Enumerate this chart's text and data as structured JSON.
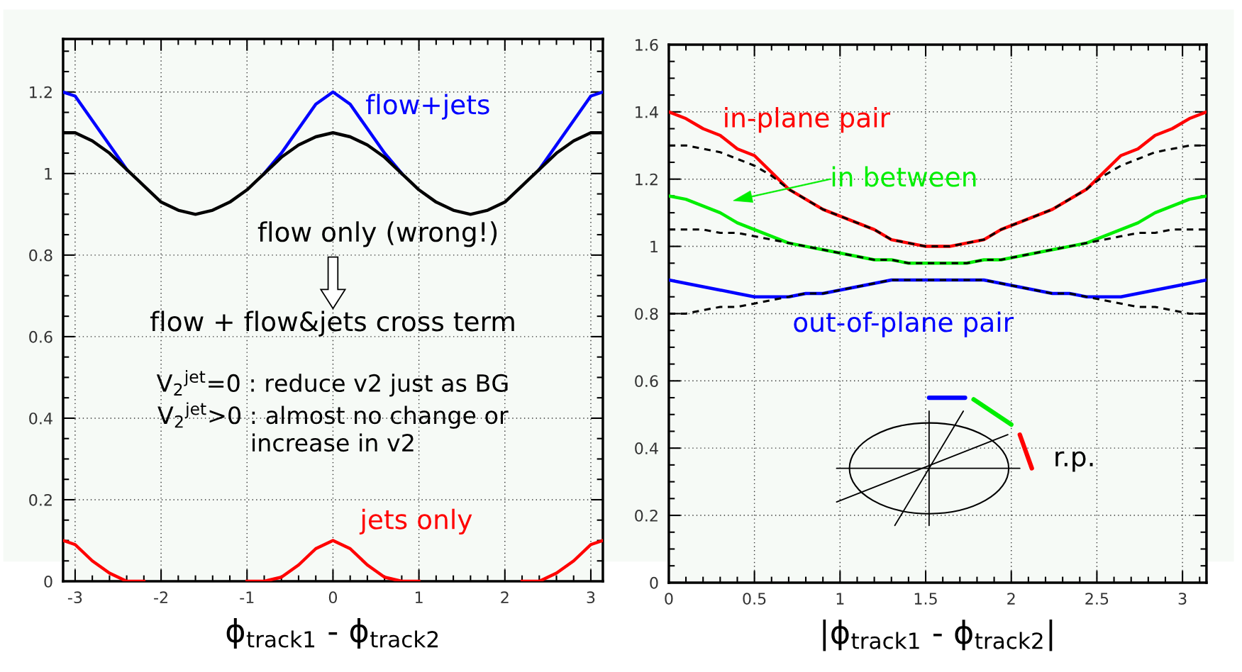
{
  "chart_data": [
    {
      "type": "line",
      "xlabel": "ϕ$_{track1}$ - ϕ$_{track2}$",
      "xlim": [
        -3.14,
        3.14
      ],
      "xticks": [
        -3,
        -2,
        -1,
        0,
        1,
        2,
        3
      ],
      "ylim": [
        0,
        1.33
      ],
      "yticks": [
        0,
        0.2,
        0.4,
        0.6,
        0.8,
        1,
        1.2
      ],
      "grid": true,
      "x": [
        -3.14,
        -3.0,
        -2.8,
        -2.6,
        -2.4,
        -2.2,
        -2.0,
        -1.8,
        -1.6,
        -1.4,
        -1.2,
        -1.0,
        -0.8,
        -0.6,
        -0.4,
        -0.2,
        0,
        0.2,
        0.4,
        0.6,
        0.8,
        1.0,
        1.2,
        1.4,
        1.6,
        1.8,
        2.0,
        2.2,
        2.4,
        2.6,
        2.8,
        3.0,
        3.14
      ],
      "series": [
        {
          "name": "flow+jets",
          "color": "#0000ff",
          "values": [
            1.2,
            1.19,
            1.13,
            1.07,
            1.01,
            null,
            null,
            null,
            null,
            null,
            null,
            null,
            1.0,
            1.05,
            1.11,
            1.17,
            1.2,
            1.17,
            1.11,
            1.05,
            1.0,
            null,
            null,
            null,
            null,
            null,
            null,
            null,
            1.01,
            1.07,
            1.13,
            1.19,
            1.2
          ]
        },
        {
          "name": "flow only (wrong!)",
          "color": "#000000",
          "values": [
            1.1,
            1.1,
            1.08,
            1.05,
            1.01,
            0.97,
            0.93,
            0.91,
            0.9,
            0.91,
            0.93,
            0.96,
            1.0,
            1.04,
            1.07,
            1.09,
            1.1,
            1.09,
            1.07,
            1.04,
            1.0,
            0.96,
            0.93,
            0.91,
            0.9,
            0.91,
            0.93,
            0.97,
            1.01,
            1.05,
            1.08,
            1.1,
            1.1
          ]
        },
        {
          "name": "jets only",
          "color": "#ff0000",
          "values": [
            0.1,
            0.09,
            0.05,
            0.02,
            0,
            0,
            null,
            null,
            null,
            null,
            null,
            0,
            0,
            0.01,
            0.04,
            0.08,
            0.1,
            0.08,
            0.04,
            0.01,
            0,
            0,
            null,
            null,
            null,
            null,
            null,
            0,
            0,
            0.02,
            0.05,
            0.09,
            0.1
          ]
        }
      ],
      "annotations": [
        "flow + flow&jets cross term",
        "V$_{2}$$^{jet}$=0 : reduce v2 just as BG\nV$_{2}$$^{jet}$>0 : almost no change or\nincrease in v2"
      ]
    },
    {
      "type": "line",
      "xlabel": "|ϕ$_{track1}$ - ϕ$_{track2}$|",
      "xlim": [
        0,
        3.14
      ],
      "xticks": [
        0,
        0.5,
        1,
        1.5,
        2,
        2.5,
        3
      ],
      "ylim": [
        0,
        1.6
      ],
      "yticks": [
        0,
        0.2,
        0.4,
        0.6,
        0.8,
        1,
        1.2,
        1.4,
        1.6
      ],
      "grid": true,
      "x": [
        0,
        0.1,
        0.2,
        0.3,
        0.4,
        0.5,
        0.6,
        0.7,
        0.8,
        0.9,
        1.0,
        1.1,
        1.2,
        1.3,
        1.4,
        1.5,
        1.57,
        1.64,
        1.74,
        1.84,
        1.94,
        2.04,
        2.14,
        2.24,
        2.34,
        2.44,
        2.54,
        2.64,
        2.74,
        2.84,
        2.94,
        3.04,
        3.14
      ],
      "series": [
        {
          "name": "in-plane pair",
          "color": "#ff0000",
          "values": [
            1.4,
            1.38,
            1.35,
            1.33,
            1.29,
            1.27,
            1.22,
            1.17,
            1.14,
            1.11,
            1.09,
            1.07,
            1.05,
            1.02,
            1.01,
            1.0,
            1.0,
            1.0,
            1.01,
            1.02,
            1.05,
            1.07,
            1.09,
            1.11,
            1.14,
            1.17,
            1.22,
            1.27,
            1.29,
            1.33,
            1.35,
            1.38,
            1.4
          ]
        },
        {
          "name": "in between",
          "color": "#00ee00",
          "values": [
            1.15,
            1.14,
            1.12,
            1.1,
            1.07,
            1.05,
            1.03,
            1.01,
            1.0,
            0.99,
            0.98,
            0.97,
            0.96,
            0.96,
            0.95,
            0.95,
            0.95,
            0.95,
            0.95,
            0.96,
            0.96,
            0.97,
            0.98,
            0.99,
            1.0,
            1.01,
            1.03,
            1.05,
            1.07,
            1.1,
            1.12,
            1.14,
            1.15
          ]
        },
        {
          "name": "out-of-plane pair",
          "color": "#0000ff",
          "values": [
            0.9,
            0.89,
            0.88,
            0.87,
            0.86,
            0.85,
            0.85,
            0.85,
            0.86,
            0.86,
            0.87,
            0.88,
            0.89,
            0.9,
            0.9,
            0.9,
            0.9,
            0.9,
            0.9,
            0.9,
            0.89,
            0.88,
            0.87,
            0.86,
            0.86,
            0.85,
            0.85,
            0.85,
            0.86,
            0.87,
            0.88,
            0.89,
            0.9
          ]
        },
        {
          "color": "#000000",
          "line_style": "dashed",
          "values": [
            1.3,
            1.3,
            1.29,
            1.28,
            1.26,
            1.24,
            1.21,
            1.17,
            1.14,
            1.11,
            1.09,
            1.07,
            1.05,
            1.02,
            1.01,
            1.0,
            1.0,
            1.0,
            1.01,
            1.02,
            1.05,
            1.07,
            1.09,
            1.11,
            1.14,
            1.17,
            1.21,
            1.24,
            1.26,
            1.28,
            1.29,
            1.3,
            1.3
          ]
        },
        {
          "color": "#000000",
          "line_style": "dashed",
          "values": [
            1.05,
            1.05,
            1.05,
            1.04,
            1.04,
            1.03,
            1.02,
            1.01,
            1.0,
            0.99,
            0.98,
            0.97,
            0.96,
            0.96,
            0.95,
            0.95,
            0.95,
            0.95,
            0.95,
            0.96,
            0.96,
            0.97,
            0.98,
            0.99,
            1.0,
            1.01,
            1.02,
            1.03,
            1.04,
            1.04,
            1.05,
            1.05,
            1.05
          ]
        },
        {
          "color": "#000000",
          "line_style": "dashed",
          "values": [
            0.8,
            0.8,
            0.81,
            0.82,
            0.82,
            0.83,
            0.84,
            0.85,
            0.86,
            0.86,
            0.87,
            0.88,
            0.89,
            0.9,
            0.9,
            0.9,
            0.9,
            0.9,
            0.9,
            0.9,
            0.89,
            0.88,
            0.87,
            0.86,
            0.86,
            0.85,
            0.84,
            0.83,
            0.82,
            0.82,
            0.81,
            0.8,
            0.8
          ]
        }
      ],
      "annotations": [
        "r.p."
      ]
    }
  ]
}
